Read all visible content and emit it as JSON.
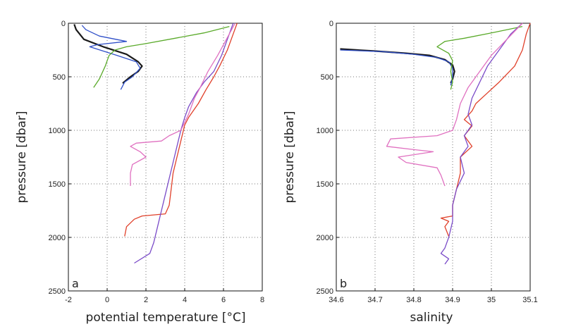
{
  "chart_data": [
    {
      "type": "line",
      "panel_label": "a",
      "xlabel": "potential temperature [°C]",
      "ylabel": "pressure [dbar]",
      "xlim": [
        -2,
        8
      ],
      "ylim": [
        0,
        2500
      ],
      "y_inverted": true,
      "xticks": [
        "-2",
        "0",
        "2",
        "4",
        "6",
        "8"
      ],
      "yticks": [
        "0",
        "500",
        "1000",
        "1500",
        "2000",
        "2500"
      ],
      "grid": "dotted",
      "series": [
        {
          "color": "#1a1a1a",
          "points": [
            [
              -1.7,
              10
            ],
            [
              -1.6,
              60
            ],
            [
              -1.2,
              150
            ],
            [
              -0.2,
              220
            ],
            [
              1.0,
              290
            ],
            [
              1.6,
              360
            ],
            [
              1.8,
              400
            ],
            [
              1.6,
              450
            ],
            [
              1.2,
              500
            ],
            [
              0.8,
              560
            ]
          ]
        },
        {
          "color": "#2f4fc8",
          "points": [
            [
              -1.3,
              20
            ],
            [
              -1.1,
              60
            ],
            [
              -0.4,
              120
            ],
            [
              1.0,
              170
            ],
            [
              -0.5,
              200
            ],
            [
              -0.9,
              220
            ],
            [
              0.5,
              300
            ],
            [
              1.5,
              360
            ],
            [
              1.7,
              420
            ],
            [
              1.3,
              500
            ],
            [
              0.9,
              550
            ],
            [
              0.7,
              620
            ]
          ]
        },
        {
          "color": "#5aaa2a",
          "points": [
            [
              6.3,
              30
            ],
            [
              5.0,
              90
            ],
            [
              3.5,
              140
            ],
            [
              2.0,
              190
            ],
            [
              1.0,
              220
            ],
            [
              0.4,
              250
            ],
            [
              0.1,
              300
            ],
            [
              0.0,
              350
            ],
            [
              -0.1,
              400
            ],
            [
              -0.4,
              520
            ],
            [
              -0.7,
              600
            ]
          ]
        },
        {
          "color": "#e0402a",
          "points": [
            [
              6.7,
              0
            ],
            [
              6.5,
              100
            ],
            [
              6.2,
              250
            ],
            [
              5.8,
              400
            ],
            [
              5.5,
              500
            ],
            [
              5.1,
              620
            ],
            [
              4.7,
              750
            ],
            [
              4.2,
              880
            ],
            [
              4.0,
              950
            ],
            [
              3.8,
              1100
            ],
            [
              3.6,
              1250
            ],
            [
              3.4,
              1400
            ],
            [
              3.3,
              1550
            ],
            [
              3.2,
              1700
            ],
            [
              3.0,
              1780
            ],
            [
              1.8,
              1800
            ],
            [
              1.4,
              1830
            ],
            [
              1.0,
              1900
            ],
            [
              0.9,
              1990
            ]
          ]
        },
        {
          "color": "#7a4bc8",
          "points": [
            [
              6.5,
              0
            ],
            [
              6.2,
              150
            ],
            [
              5.9,
              300
            ],
            [
              5.5,
              450
            ],
            [
              5.0,
              550
            ],
            [
              4.6,
              650
            ],
            [
              4.2,
              780
            ],
            [
              4.0,
              880
            ],
            [
              3.8,
              1000
            ],
            [
              3.6,
              1150
            ],
            [
              3.4,
              1300
            ],
            [
              3.2,
              1450
            ],
            [
              3.0,
              1600
            ],
            [
              2.8,
              1750
            ],
            [
              2.6,
              1900
            ],
            [
              2.4,
              2050
            ],
            [
              2.2,
              2150
            ],
            [
              1.4,
              2240
            ]
          ]
        },
        {
          "color": "#e070c0",
          "points": [
            [
              6.6,
              0
            ],
            [
              6.3,
              100
            ],
            [
              5.7,
              300
            ],
            [
              5.2,
              450
            ],
            [
              4.8,
              600
            ],
            [
              4.5,
              700
            ],
            [
              4.2,
              850
            ],
            [
              3.8,
              1000
            ],
            [
              3.2,
              1050
            ],
            [
              2.8,
              1100
            ],
            [
              1.5,
              1120
            ],
            [
              1.2,
              1150
            ],
            [
              1.7,
              1200
            ],
            [
              2.0,
              1250
            ],
            [
              1.3,
              1320
            ],
            [
              1.2,
              1400
            ],
            [
              1.2,
              1520
            ]
          ]
        }
      ]
    },
    {
      "type": "line",
      "panel_label": "b",
      "xlabel": "salinity",
      "ylabel": "pressure [dbar]",
      "xlim": [
        34.6,
        35.1
      ],
      "ylim": [
        0,
        2500
      ],
      "y_inverted": true,
      "xticks": [
        "34.6",
        "34.7",
        "34.8",
        "34.9",
        "35",
        "35.1"
      ],
      "yticks": [
        "0",
        "500",
        "1000",
        "1500",
        "2000",
        "2500"
      ],
      "grid": "dotted",
      "series": [
        {
          "color": "#1a1a1a",
          "points": [
            [
              34.61,
              240
            ],
            [
              34.7,
              260
            ],
            [
              34.78,
              280
            ],
            [
              34.84,
              300
            ],
            [
              34.88,
              340
            ],
            [
              34.9,
              390
            ],
            [
              34.905,
              450
            ],
            [
              34.9,
              520
            ],
            [
              34.895,
              560
            ]
          ]
        },
        {
          "color": "#2f4fc8",
          "points": [
            [
              34.61,
              250
            ],
            [
              34.72,
              265
            ],
            [
              34.8,
              290
            ],
            [
              34.86,
              320
            ],
            [
              34.89,
              360
            ],
            [
              34.9,
              420
            ],
            [
              34.9,
              500
            ],
            [
              34.895,
              580
            ]
          ]
        },
        {
          "color": "#5aaa2a",
          "points": [
            [
              35.08,
              30
            ],
            [
              35.0,
              90
            ],
            [
              34.93,
              140
            ],
            [
              34.88,
              170
            ],
            [
              34.86,
              220
            ],
            [
              34.89,
              280
            ],
            [
              34.9,
              350
            ],
            [
              34.895,
              450
            ],
            [
              34.9,
              550
            ],
            [
              34.895,
              620
            ]
          ]
        },
        {
          "color": "#e0402a",
          "points": [
            [
              35.1,
              0
            ],
            [
              35.09,
              100
            ],
            [
              35.08,
              250
            ],
            [
              35.06,
              400
            ],
            [
              35.02,
              550
            ],
            [
              34.99,
              650
            ],
            [
              34.96,
              750
            ],
            [
              34.95,
              820
            ],
            [
              34.93,
              900
            ],
            [
              34.95,
              960
            ],
            [
              34.93,
              1050
            ],
            [
              34.95,
              1150
            ],
            [
              34.92,
              1250
            ],
            [
              34.92,
              1400
            ],
            [
              34.91,
              1550
            ],
            [
              34.9,
              1700
            ],
            [
              34.9,
              1800
            ],
            [
              34.87,
              1820
            ],
            [
              34.89,
              1850
            ],
            [
              34.88,
              1900
            ],
            [
              34.89,
              1990
            ]
          ]
        },
        {
          "color": "#7a4bc8",
          "points": [
            [
              35.08,
              0
            ],
            [
              35.05,
              100
            ],
            [
              35.02,
              250
            ],
            [
              34.99,
              400
            ],
            [
              34.97,
              550
            ],
            [
              34.95,
              700
            ],
            [
              34.94,
              850
            ],
            [
              34.95,
              950
            ],
            [
              34.93,
              1050
            ],
            [
              34.94,
              1150
            ],
            [
              34.92,
              1250
            ],
            [
              34.93,
              1400
            ],
            [
              34.91,
              1550
            ],
            [
              34.9,
              1700
            ],
            [
              34.9,
              1850
            ],
            [
              34.89,
              2000
            ],
            [
              34.88,
              2100
            ],
            [
              34.87,
              2150
            ],
            [
              34.89,
              2200
            ],
            [
              34.88,
              2250
            ]
          ]
        },
        {
          "color": "#e070c0",
          "points": [
            [
              35.08,
              0
            ],
            [
              35.04,
              150
            ],
            [
              35.0,
              300
            ],
            [
              34.97,
              450
            ],
            [
              34.94,
              600
            ],
            [
              34.92,
              750
            ],
            [
              34.91,
              900
            ],
            [
              34.9,
              1000
            ],
            [
              34.86,
              1050
            ],
            [
              34.74,
              1080
            ],
            [
              34.73,
              1150
            ],
            [
              34.8,
              1180
            ],
            [
              34.85,
              1200
            ],
            [
              34.76,
              1250
            ],
            [
              34.78,
              1300
            ],
            [
              34.86,
              1350
            ],
            [
              34.87,
              1420
            ],
            [
              34.88,
              1520
            ]
          ]
        }
      ]
    }
  ]
}
